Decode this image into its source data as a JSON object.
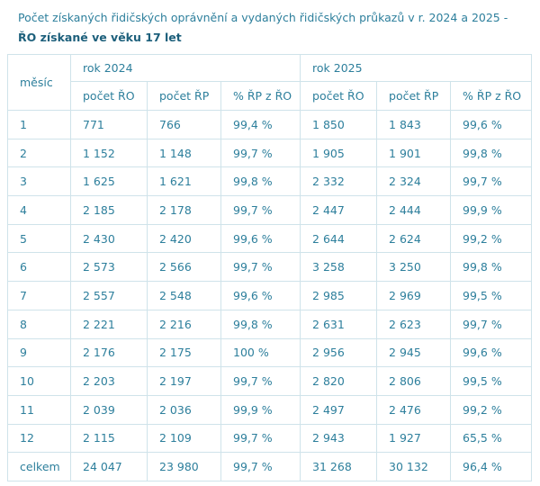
{
  "title": {
    "text": "Počet získaných řidičských oprávnění a vydaných řidičských průkazů v r. 2024 a 2025 - ",
    "bold": "ŘO získané ve věku 17 let"
  },
  "header": {
    "month": "měsíc",
    "years": [
      "rok 2024",
      "rok 2025"
    ],
    "columns": [
      "počet ŘO",
      "počet ŘP",
      "% ŘP z ŘO",
      "počet ŘO",
      "počet ŘP",
      "% ŘP z ŘO"
    ]
  },
  "rows": [
    [
      "1",
      "771",
      "766",
      "99,4 %",
      "1 850",
      "1 843",
      "99,6 %"
    ],
    [
      "2",
      "1 152",
      "1 148",
      "99,7 %",
      "1 905",
      "1 901",
      "99,8 %"
    ],
    [
      "3",
      "1 625",
      "1 621",
      "99,8 %",
      "2 332",
      "2 324",
      "99,7 %"
    ],
    [
      "4",
      "2 185",
      "2 178",
      "99,7 %",
      "2 447",
      "2 444",
      "99,9 %"
    ],
    [
      "5",
      "2 430",
      "2 420",
      "99,6 %",
      "2 644",
      "2 624",
      "99,2 %"
    ],
    [
      "6",
      "2 573",
      "2 566",
      "99,7 %",
      "3 258",
      "3 250",
      "99,8 %"
    ],
    [
      "7",
      "2 557",
      "2 548",
      "99,6 %",
      "2 985",
      "2 969",
      "99,5 %"
    ],
    [
      "8",
      "2 221",
      "2 216",
      "99,8 %",
      "2 631",
      "2 623",
      "99,7 %"
    ],
    [
      "9",
      "2 176",
      "2 175",
      "100 %",
      "2 956",
      "2 945",
      "99,6 %"
    ],
    [
      "10",
      "2 203",
      "2 197",
      "99,7 %",
      "2 820",
      "2 806",
      "99,5 %"
    ],
    [
      "11",
      "2 039",
      "2 036",
      "99,9 %",
      "2 497",
      "2 476",
      "99,2 %"
    ],
    [
      "12",
      "2 115",
      "2 109",
      "99,7 %",
      "2 943",
      "1 927",
      "65,5 %"
    ],
    [
      "celkem",
      "24 047",
      "23 980",
      "99,7 %",
      "31 268",
      "30 132",
      "96,4 %"
    ]
  ]
}
